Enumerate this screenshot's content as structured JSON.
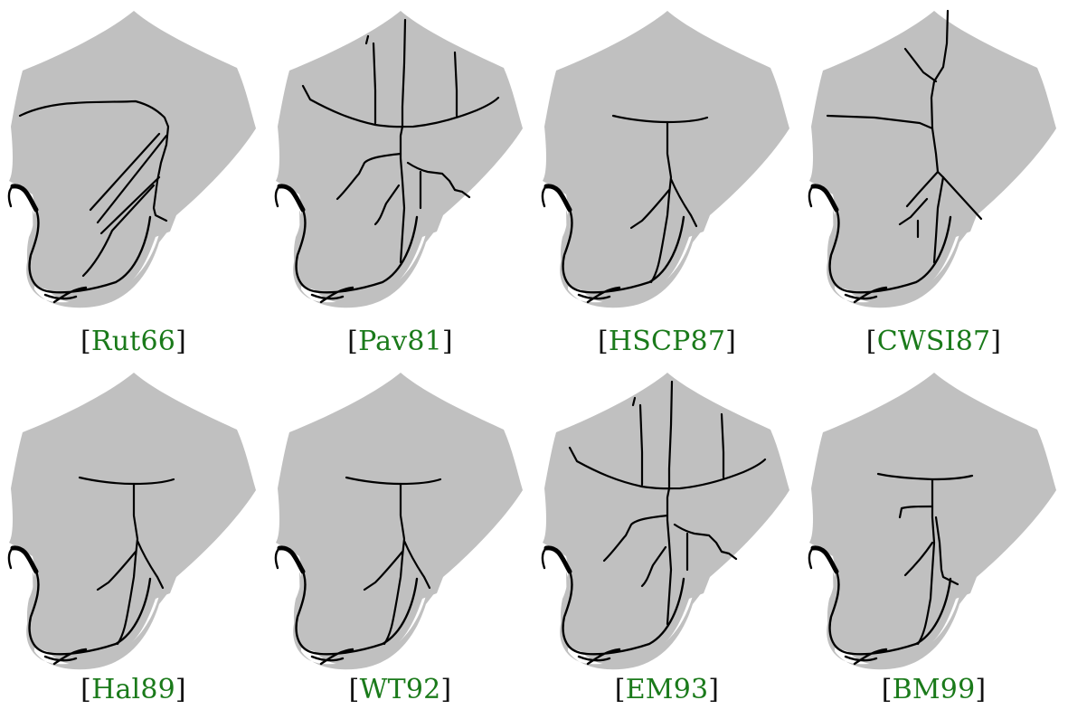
{
  "figure": {
    "panels": [
      {
        "key": "Rut66",
        "variant": "rut"
      },
      {
        "key": "Pav81",
        "variant": "pav"
      },
      {
        "key": "HSCP87",
        "variant": "simple"
      },
      {
        "key": "CWSI87",
        "variant": "cwsi"
      },
      {
        "key": "Hal89",
        "variant": "simple"
      },
      {
        "key": "WT92",
        "variant": "simple"
      },
      {
        "key": "EM93",
        "variant": "pav"
      },
      {
        "key": "BM99",
        "variant": "bm"
      }
    ],
    "colors": {
      "shape_fill": "#c0c0c0",
      "skeleton": "#000000",
      "citation": "#1a7a1a"
    }
  }
}
